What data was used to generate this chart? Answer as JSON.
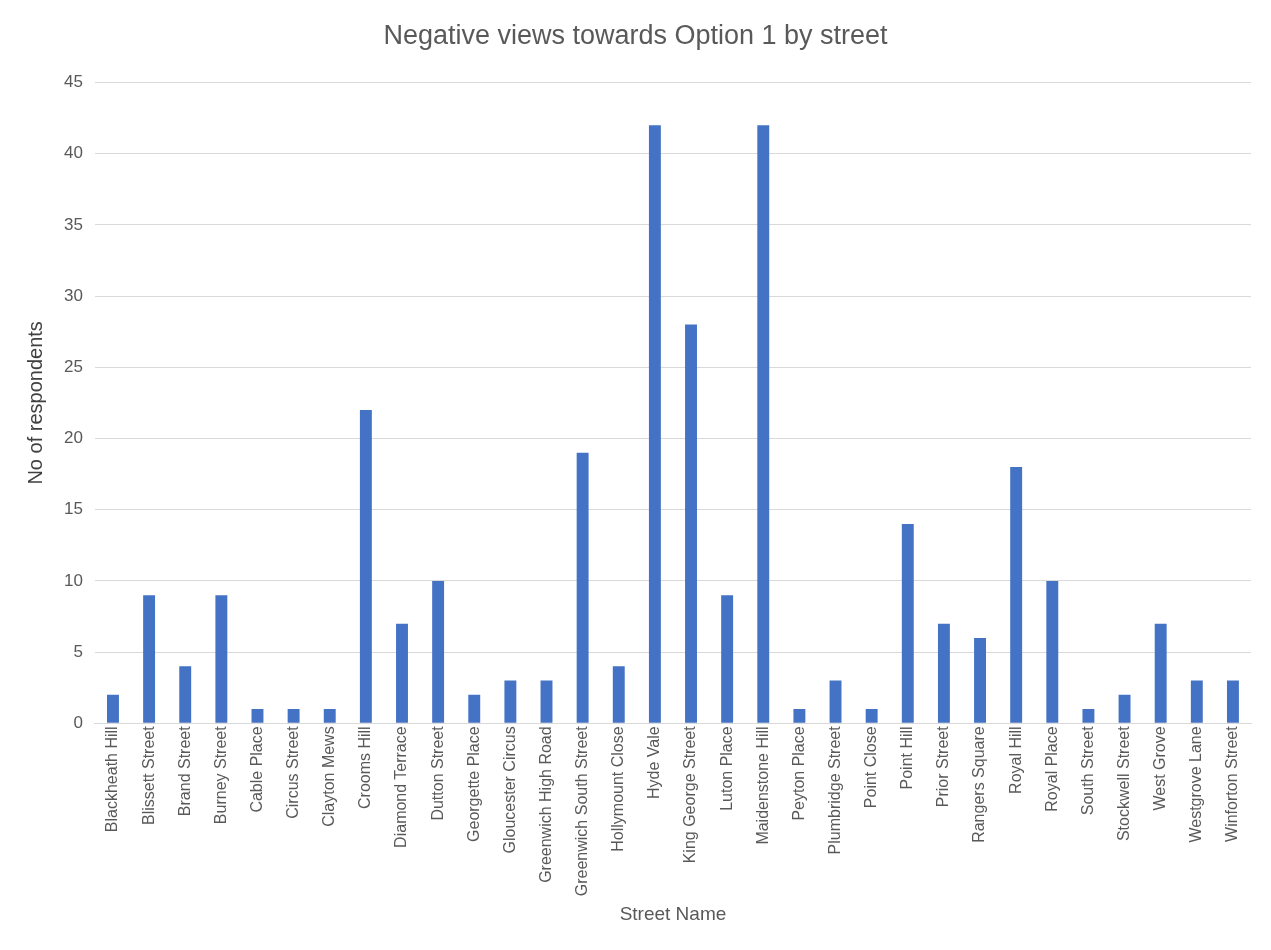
{
  "chart_data": {
    "type": "bar",
    "title": "Negative views towards Option 1 by street",
    "xlabel": "Street Name",
    "ylabel": "No of respondents",
    "categories": [
      "Blackheath Hill",
      "Blissett Street",
      "Brand Street",
      "Burney Street",
      "Cable Place",
      "Circus Street",
      "Clayton Mews",
      "Crooms Hill",
      "Diamond Terrace",
      "Dutton Street",
      "Georgette Place",
      "Gloucester Circus",
      "Greenwich High Road",
      "Greenwich South Street",
      "Hollymount Close",
      "Hyde Vale",
      "King George Street",
      "Luton Place",
      "Maidenstone Hill",
      "Peyton Place",
      "Plumbridge Street",
      "Point Close",
      "Point Hill",
      "Prior Street",
      "Rangers Square",
      "Royal Hill",
      "Royal Place",
      "South Street",
      "Stockwell Street",
      "West Grove",
      "Westgrove Lane",
      "Winforton Street"
    ],
    "values": [
      2,
      9,
      4,
      9,
      1,
      1,
      1,
      22,
      7,
      10,
      2,
      3,
      3,
      19,
      4,
      42,
      28,
      9,
      42,
      1,
      3,
      1,
      14,
      7,
      6,
      18,
      10,
      1,
      2,
      7,
      3,
      3
    ],
    "color": "#4472c4",
    "ylim": [
      0,
      45
    ],
    "yticks": [
      0,
      5,
      10,
      15,
      20,
      25,
      30,
      35,
      40,
      45
    ],
    "grid": "y",
    "legend": false
  }
}
